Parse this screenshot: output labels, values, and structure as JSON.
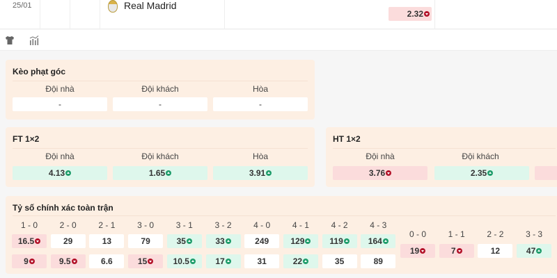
{
  "match": {
    "date": "25/01",
    "team": "Real Madrid",
    "odds": {
      "value": "2.32",
      "trend": "down"
    }
  },
  "toolbar": {
    "icons": [
      "shirt-icon",
      "stats-chart-icon"
    ]
  },
  "corner": {
    "title": "Kèo phạt góc",
    "labels": [
      "Đội nhà",
      "Đội khách",
      "Hòa"
    ],
    "values": [
      "-",
      "-",
      "-"
    ]
  },
  "ft": {
    "title": "FT 1×2",
    "labels": [
      "Đội nhà",
      "Đội khách",
      "Hòa"
    ],
    "values": [
      {
        "v": "4.13",
        "trend": "up"
      },
      {
        "v": "1.65",
        "trend": "up"
      },
      {
        "v": "3.91",
        "trend": "up"
      }
    ]
  },
  "ht": {
    "title": "HT 1×2",
    "labels": [
      "Đội nhà",
      "Đội khách"
    ],
    "values": [
      {
        "v": "3.76",
        "trend": "down"
      },
      {
        "v": "2.35",
        "trend": "up"
      }
    ]
  },
  "correct_score": {
    "title": "Tỷ số chính xác toàn trận",
    "home_labels": [
      "1 - 0",
      "2 - 0",
      "2 - 1",
      "3 - 0",
      "3 - 1",
      "3 - 2",
      "4 - 0",
      "4 - 1",
      "4 - 2",
      "4 - 3"
    ],
    "home_row": [
      {
        "v": "16.5",
        "trend": "down"
      },
      {
        "v": "29",
        "trend": ""
      },
      {
        "v": "13",
        "trend": ""
      },
      {
        "v": "79",
        "trend": ""
      },
      {
        "v": "35",
        "trend": "up"
      },
      {
        "v": "33",
        "trend": "up"
      },
      {
        "v": "249",
        "trend": ""
      },
      {
        "v": "129",
        "trend": "up"
      },
      {
        "v": "119",
        "trend": "up"
      },
      {
        "v": "164",
        "trend": "up"
      }
    ],
    "away_row": [
      {
        "v": "9",
        "trend": "down"
      },
      {
        "v": "9.5",
        "trend": "down"
      },
      {
        "v": "6.6",
        "trend": ""
      },
      {
        "v": "15",
        "trend": "down"
      },
      {
        "v": "10.5",
        "trend": "up"
      },
      {
        "v": "17",
        "trend": "up"
      },
      {
        "v": "31",
        "trend": ""
      },
      {
        "v": "22",
        "trend": "up"
      },
      {
        "v": "35",
        "trend": ""
      },
      {
        "v": "89",
        "trend": ""
      }
    ],
    "draw_labels": [
      "0 - 0",
      "1 - 1",
      "2 - 2",
      "3 - 3"
    ],
    "draw_row": [
      {
        "v": "19",
        "trend": "down"
      },
      {
        "v": "7",
        "trend": "down"
      },
      {
        "v": "12",
        "trend": ""
      },
      {
        "v": "47",
        "trend": "up"
      }
    ]
  }
}
